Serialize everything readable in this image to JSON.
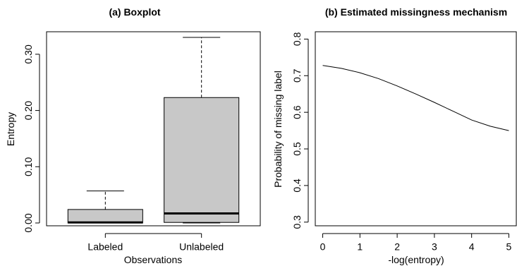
{
  "chart_data": [
    {
      "type": "boxplot",
      "title": "(a) Boxplot",
      "xlabel": "Observations",
      "ylabel": "Entropy",
      "ylim": [
        -0.005,
        0.34
      ],
      "yticks": [
        "0.00",
        "0.10",
        "0.20",
        "0.30"
      ],
      "ytick_values": [
        0.0,
        0.1,
        0.2,
        0.3
      ],
      "categories": [
        "Labeled",
        "Unlabeled"
      ],
      "boxes": [
        {
          "name": "Labeled",
          "min": 0.0,
          "q1": 0.0,
          "median": 0.001,
          "q3": 0.024,
          "max": 0.057
        },
        {
          "name": "Unlabeled",
          "min": 0.0,
          "q1": 0.001,
          "median": 0.017,
          "q3": 0.223,
          "max": 0.33
        }
      ],
      "box_color": "#c8c8c8"
    },
    {
      "type": "line",
      "title": "(b) Estimated missingness mechanism",
      "xlabel": "-log(entropy)",
      "ylabel": "Probability of missing label",
      "xlim": [
        -0.2,
        5.2
      ],
      "ylim": [
        0.29,
        0.82
      ],
      "xticks": [
        "0",
        "1",
        "2",
        "3",
        "4",
        "5"
      ],
      "xtick_values": [
        0,
        1,
        2,
        3,
        4,
        5
      ],
      "yticks": [
        "0.3",
        "0.4",
        "0.5",
        "0.6",
        "0.7",
        "0.8"
      ],
      "ytick_values": [
        0.3,
        0.4,
        0.5,
        0.6,
        0.7,
        0.8
      ],
      "x": [
        0,
        0.5,
        1,
        1.5,
        2,
        2.5,
        3,
        3.5,
        4,
        4.5,
        5
      ],
      "y": [
        0.728,
        0.72,
        0.708,
        0.692,
        0.672,
        0.65,
        0.627,
        0.603,
        0.579,
        0.562,
        0.55
      ]
    }
  ]
}
